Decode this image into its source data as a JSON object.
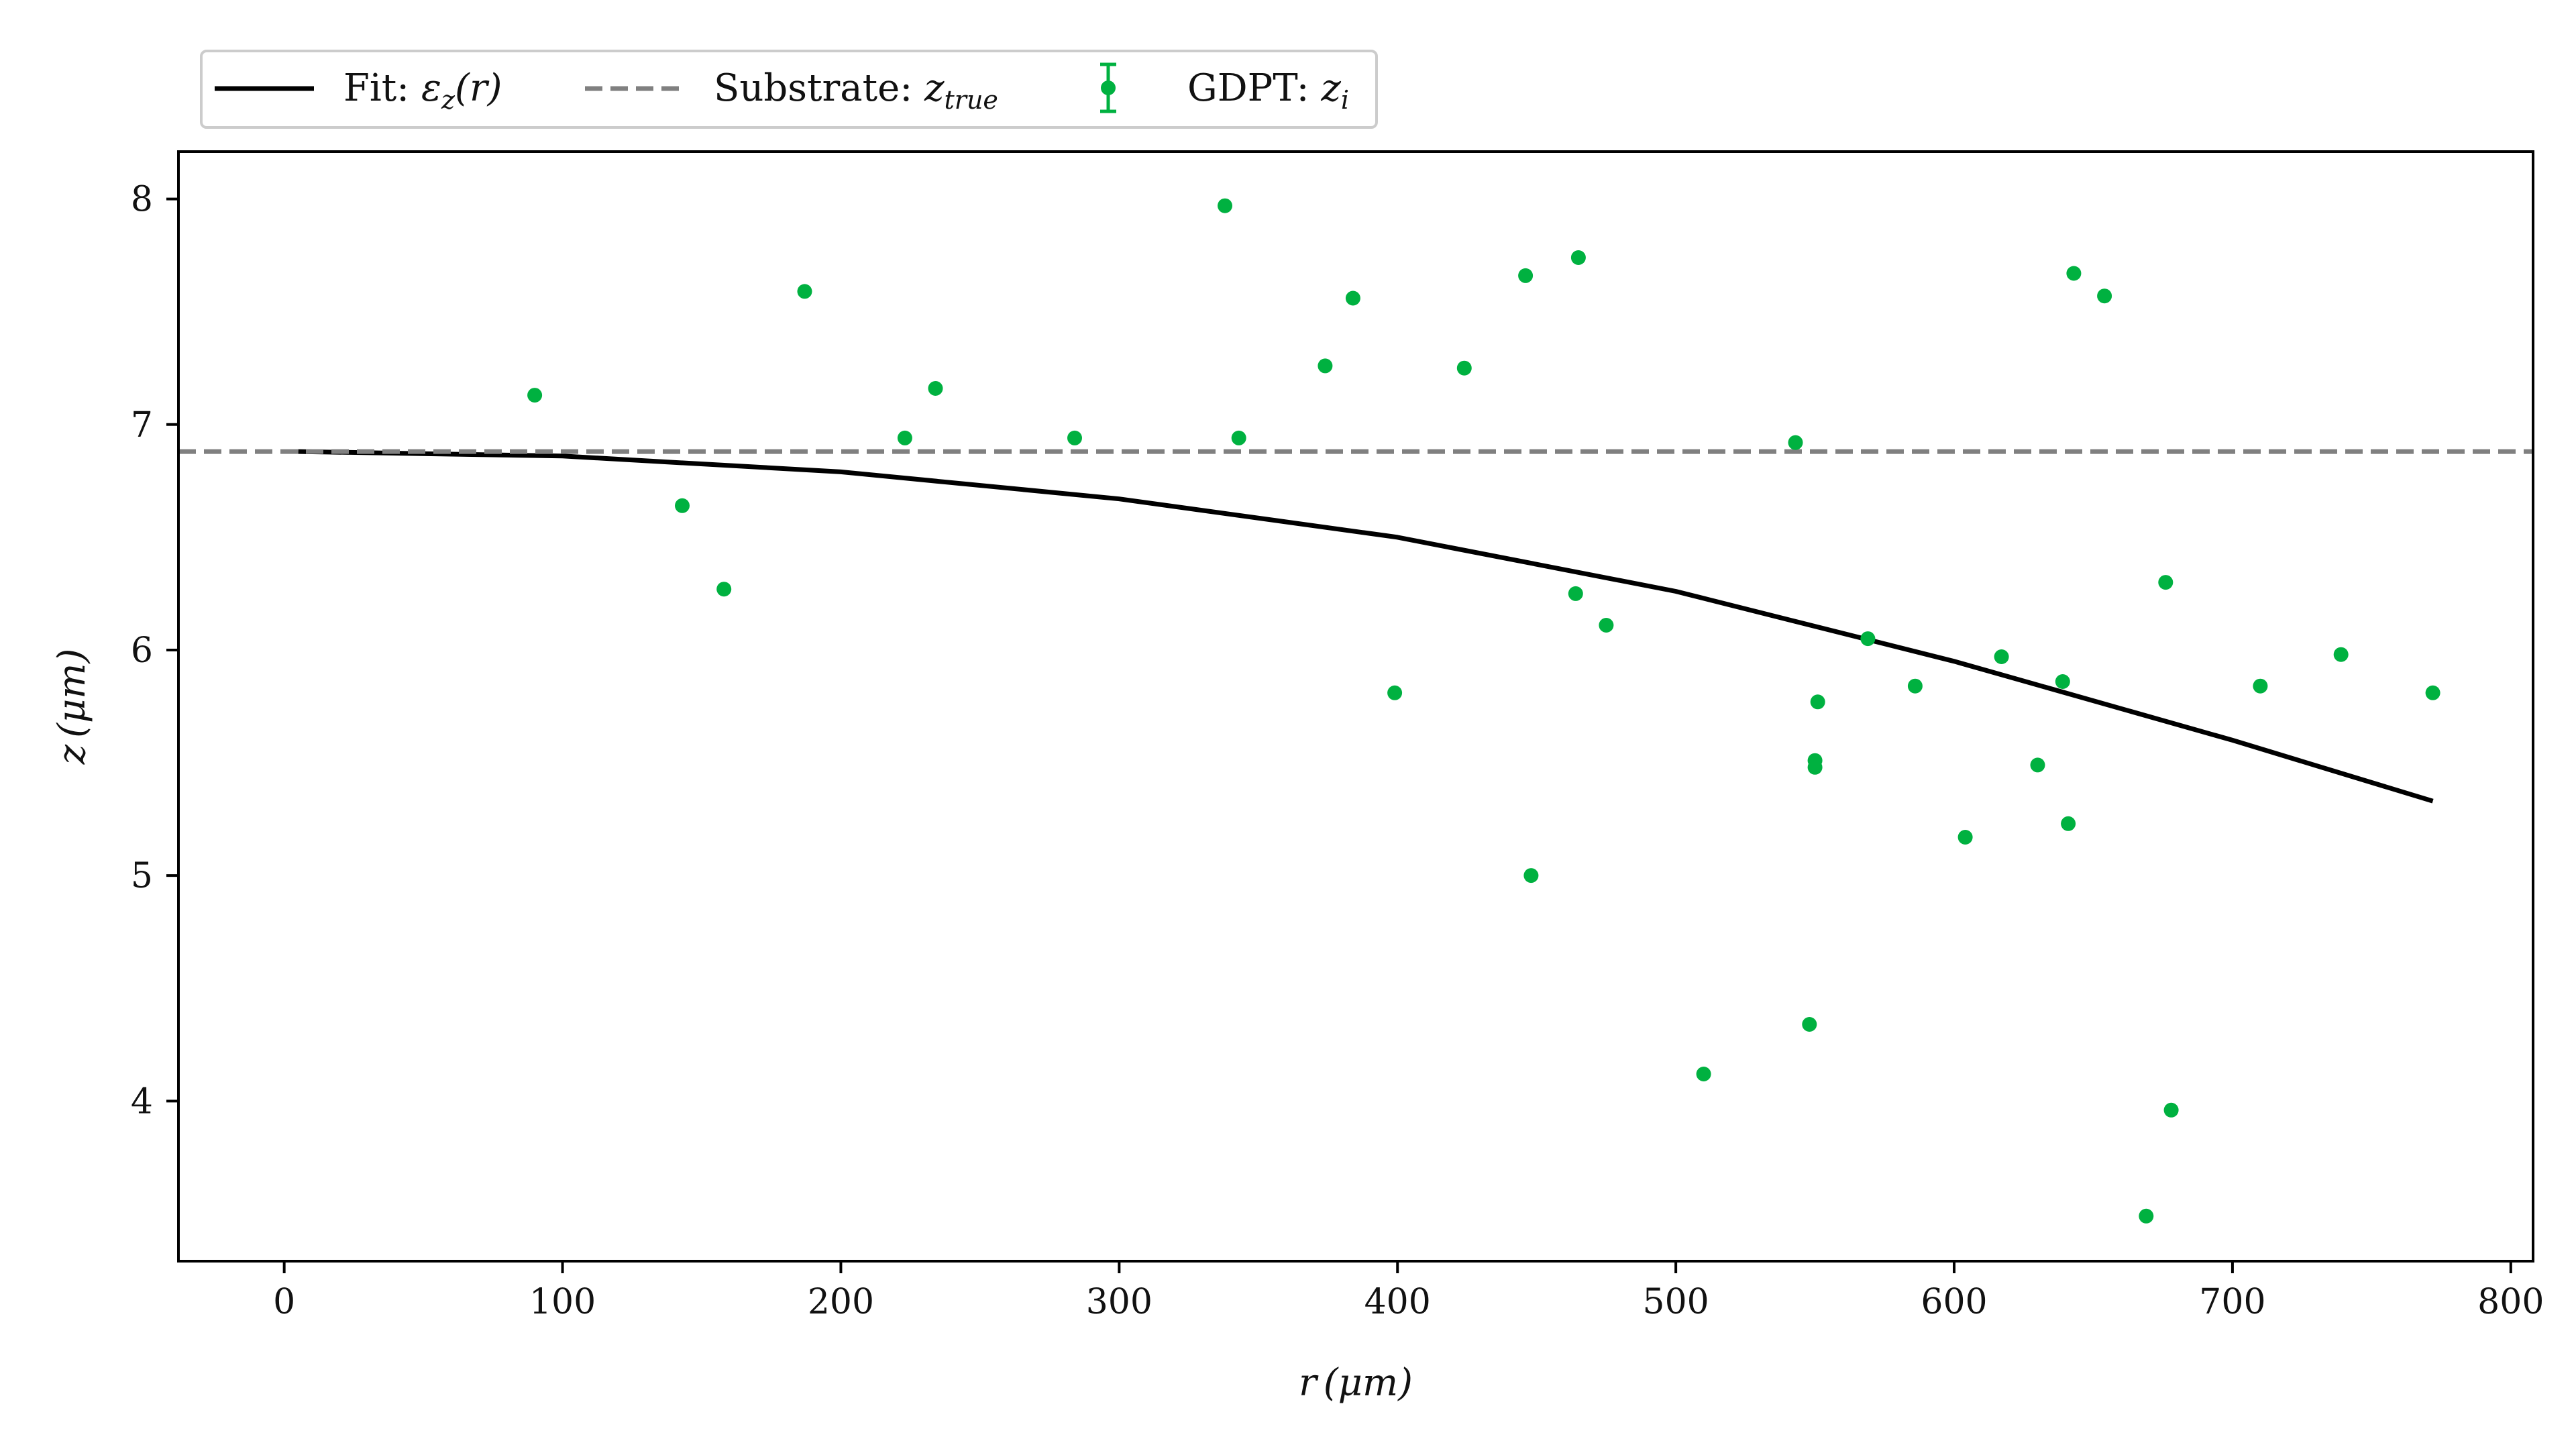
{
  "chart_data": {
    "type": "scatter",
    "title": "",
    "xlabel": "r (μm)",
    "ylabel": "z (μm)",
    "xlim": [
      -38,
      808
    ],
    "ylim": [
      3.29,
      8.21
    ],
    "xticks": [
      0,
      100,
      200,
      300,
      400,
      500,
      600,
      700,
      800
    ],
    "yticks": [
      4,
      5,
      6,
      7,
      8
    ],
    "grid": false,
    "legend_position": "top-left, above plot",
    "series": [
      {
        "name": "Fit: εz(r)",
        "kind": "line",
        "style": "solid",
        "color": "#000000",
        "model": "quadratic",
        "x": [
          5,
          100,
          200,
          300,
          400,
          500,
          600,
          700,
          772
        ],
        "y": [
          6.88,
          6.86,
          6.79,
          6.67,
          6.5,
          6.26,
          5.95,
          5.6,
          5.33
        ]
      },
      {
        "name": "Substrate: ztrue",
        "kind": "hline",
        "style": "dashed",
        "color": "#808080",
        "y": 6.88
      },
      {
        "name": "GDPT: zi",
        "kind": "points",
        "color": "#00b140",
        "x": [
          90,
          143,
          158,
          187,
          223,
          234,
          284,
          338,
          343,
          374,
          384,
          399,
          424,
          446,
          448,
          464,
          465,
          475,
          510,
          543,
          548,
          550,
          550,
          551,
          569,
          586,
          604,
          617,
          630,
          639,
          641,
          643,
          654,
          669,
          676,
          678,
          710,
          739,
          772
        ],
        "y": [
          7.13,
          6.64,
          6.27,
          7.59,
          6.94,
          7.16,
          6.94,
          7.97,
          6.94,
          7.26,
          7.56,
          5.81,
          7.25,
          7.66,
          5.0,
          6.25,
          7.74,
          6.11,
          4.12,
          6.92,
          4.34,
          5.51,
          5.48,
          5.77,
          6.05,
          5.84,
          5.17,
          5.97,
          5.49,
          5.86,
          5.23,
          7.67,
          7.57,
          3.49,
          6.3,
          3.96,
          5.84,
          5.98,
          5.81
        ]
      }
    ]
  },
  "legend": {
    "fit_prefix": "Fit: ",
    "fit_sym": "ε",
    "fit_sub": "z",
    "fit_arg": "(r)",
    "substrate_prefix": "Substrate: ",
    "substrate_sym": "z",
    "substrate_sub": "true",
    "gdpt_prefix": "GDPT: ",
    "gdpt_sym": "z",
    "gdpt_sub": "i"
  },
  "axes": {
    "x_var": "r",
    "x_unit": "(μm)",
    "y_var": "z",
    "y_unit": "(μm)"
  }
}
